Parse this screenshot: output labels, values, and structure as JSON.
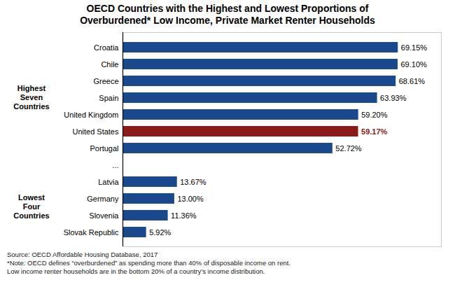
{
  "chart_data": {
    "type": "bar",
    "orientation": "horizontal",
    "title": "OECD Countries with the Highest and Lowest Proportions of\nOverburdened* Low Income, Private Market Renter Households",
    "categories": [
      "Croatia",
      "Chile",
      "Greece",
      "Spain",
      "United Kingdom",
      "United States",
      "Portugal",
      "...",
      "Latvia",
      "Germany",
      "Slovenia",
      "Slovak Republic"
    ],
    "values": [
      69.15,
      69.1,
      68.61,
      63.93,
      59.2,
      59.17,
      52.72,
      null,
      13.67,
      13.0,
      11.36,
      5.92
    ],
    "value_labels": [
      "69.15%",
      "69.10%",
      "68.61%",
      "63.93%",
      "59.20%",
      "59.17%",
      "52.72%",
      null,
      "13.67%",
      "13.00%",
      "11.36%",
      "5.92%"
    ],
    "data_labels": true,
    "colors": [
      "#1a4a8c",
      "#1a4a8c",
      "#1a4a8c",
      "#1a4a8c",
      "#1a4a8c",
      "#8b1a1a",
      "#1a4a8c",
      null,
      "#1a4a8c",
      "#1a4a8c",
      "#1a4a8c",
      "#1a4a8c"
    ],
    "xlim": [
      0,
      80
    ],
    "tick_labels": "y",
    "grid": false,
    "annotations": [
      {
        "text": "Highest\nSeven\nCountries",
        "from": "Croatia",
        "to": "Portugal"
      },
      {
        "text": "Lowest\nFour\nCountries",
        "from": "Latvia",
        "to": "Slovak Republic"
      }
    ],
    "caption": "Source: OECD Affordable Housing Database, 2017\n*Note: OECD defines “overburdened” as spending more than 40% of disposable income on rent.\nLow income renter households are in the bottom 20% of a country’s income distribution."
  }
}
